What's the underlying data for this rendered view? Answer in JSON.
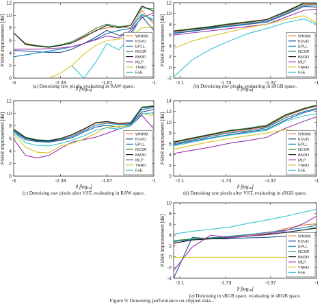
{
  "figure": {
    "caption": "Figure 9: Denoising performance on clipped data..."
  },
  "legend_labels": [
    "WNNM",
    "KSVD",
    "EPLL",
    "NCSR",
    "BM3D",
    "MLP",
    "TNRD",
    "FoE"
  ],
  "colors": {
    "WNNM": "#e07b3a",
    "KSVD": "#1f4e8c",
    "EPLL": "#0a7ec2",
    "NCSR": "#2e8b3e",
    "BM3D": "#222222",
    "MLP": "#9b2fae",
    "TNRD": "#d2c41e",
    "FoE": "#2ec4d2"
  },
  "chart_data": [
    {
      "id": "a",
      "type": "line",
      "caption": "(a) Denoising raw pixels, evaluating in RAW space.",
      "xlabel": "ϑ [log₁₀]",
      "ylabel": "PSNR improvement [dB]",
      "xlim": [
        -3,
        -1
      ],
      "ylim": [
        0,
        12
      ],
      "xticks": [
        -3,
        -2.33,
        -1.67,
        -1
      ],
      "xtick_labels": [
        "-3",
        "-2.33",
        "-1.67",
        "-1"
      ],
      "yticks": [
        0,
        2,
        4,
        6,
        8,
        10,
        12
      ],
      "grid": false,
      "legend": "right-inside",
      "x": [
        -3,
        -2.83,
        -2.67,
        -2.5,
        -2.33,
        -2.17,
        -2.0,
        -1.83,
        -1.67,
        -1.5,
        -1.33,
        -1.17,
        -1.0
      ],
      "series": [
        {
          "name": "WNNM",
          "values": [
            7.2,
            5.3,
            5.1,
            5.0,
            5.2,
            5.6,
            6.4,
            7.6,
            8.0,
            8.2,
            8.0,
            10.8,
            8.6
          ]
        },
        {
          "name": "KSVD",
          "values": [
            4.4,
            4.3,
            4.2,
            4.1,
            4.1,
            4.6,
            5.5,
            6.5,
            7.6,
            6.8,
            7.2,
            9.8,
            7.6
          ]
        },
        {
          "name": "EPLL",
          "values": [
            3.4,
            3.7,
            4.0,
            4.3,
            4.6,
            5.0,
            5.5,
            6.2,
            7.1,
            7.6,
            7.9,
            10.2,
            9.1
          ]
        },
        {
          "name": "NCSR",
          "values": [
            7.2,
            5.5,
            5.2,
            5.0,
            5.3,
            5.8,
            6.8,
            7.9,
            8.6,
            8.2,
            8.4,
            11.2,
            11.0
          ]
        },
        {
          "name": "BM3D",
          "values": [
            7.2,
            5.4,
            5.1,
            4.9,
            5.2,
            5.6,
            6.6,
            7.5,
            8.4,
            8.0,
            8.4,
            11.5,
            10.6
          ]
        },
        {
          "name": "MLP",
          "values": [
            4.6,
            4.6,
            4.6,
            4.7,
            4.8,
            5.0,
            5.5,
            6.1,
            6.7,
            6.4,
            7.6,
            9.6,
            10.4
          ]
        },
        {
          "name": "TNRD",
          "values": [
            null,
            null,
            null,
            0.0,
            0.8,
            2.0,
            3.8,
            5.2,
            6.0,
            6.2,
            6.6,
            8.0,
            8.2
          ]
        },
        {
          "name": "FoE",
          "values": [
            null,
            null,
            null,
            null,
            null,
            2.0,
            0.0,
            2.5,
            5.5,
            4.5,
            6.6,
            10.0,
            9.4
          ]
        }
      ]
    },
    {
      "id": "b",
      "type": "line",
      "caption": "(b) Denoising raw pixels, evaluating in sRGB space.",
      "xlabel": "ϑ [log₁₀]",
      "ylabel": "PSNR improvement [dB]",
      "xlim": [
        -2.15,
        -1.0
      ],
      "ylim": [
        -2,
        12
      ],
      "xticks": [
        -2.1,
        -1.73,
        -1.37,
        -1.0
      ],
      "xtick_labels": [
        "-2.1",
        "-1.73",
        "-1.37",
        "-1"
      ],
      "yticks": [
        -2,
        0,
        2,
        4,
        6,
        8,
        10,
        12
      ],
      "grid": false,
      "legend": "right-inside",
      "x": [
        -2.15,
        -2.0,
        -1.85,
        -1.7,
        -1.55,
        -1.4,
        -1.25,
        -1.1,
        -1.0
      ],
      "series": [
        {
          "name": "WNNM",
          "values": [
            6.6,
            7.0,
            7.4,
            7.9,
            8.3,
            8.8,
            10.2,
            11.7,
            11.7
          ]
        },
        {
          "name": "KSVD",
          "values": [
            6.3,
            6.7,
            7.2,
            7.6,
            8.0,
            8.4,
            9.8,
            11.3,
            11.2
          ]
        },
        {
          "name": "EPLL",
          "values": [
            6.4,
            6.8,
            7.3,
            7.7,
            8.1,
            8.6,
            10.0,
            11.5,
            11.6
          ]
        },
        {
          "name": "NCSR",
          "values": [
            6.8,
            7.2,
            7.6,
            8.1,
            8.5,
            8.9,
            10.4,
            12.0,
            12.0
          ]
        },
        {
          "name": "BM3D",
          "values": [
            6.7,
            7.1,
            7.5,
            8.0,
            8.4,
            8.9,
            10.3,
            11.9,
            11.9
          ]
        },
        {
          "name": "MLP",
          "values": [
            6.0,
            6.4,
            6.8,
            7.2,
            7.6,
            8.0,
            9.3,
            10.6,
            10.8
          ]
        },
        {
          "name": "TNRD",
          "values": [
            3.5,
            4.9,
            5.8,
            6.6,
            7.4,
            8.0,
            8.9,
            9.6,
            8.3
          ]
        },
        {
          "name": "FoE",
          "values": [
            -1.8,
            1.4,
            3.4,
            4.9,
            6.3,
            7.2,
            8.3,
            9.0,
            8.0
          ]
        }
      ]
    },
    {
      "id": "c",
      "type": "line",
      "caption": "(c) Denoising raw pixels after VST, evaluating in RAW space.",
      "xlabel": "ϑ [log₁₀]",
      "ylabel": "PSNR improvement [dB]",
      "xlim": [
        -3,
        -1
      ],
      "ylim": [
        0,
        12
      ],
      "xticks": [
        -3,
        -2.33,
        -1.67,
        -1
      ],
      "xtick_labels": [
        "-3",
        "-2.33",
        "-1.67",
        "-1"
      ],
      "yticks": [
        0,
        2,
        4,
        6,
        8,
        10,
        12
      ],
      "grid": false,
      "legend": "right-inside",
      "x": [
        -3,
        -2.83,
        -2.67,
        -2.5,
        -2.33,
        -2.17,
        -2.0,
        -1.83,
        -1.67,
        -1.5,
        -1.33,
        -1.17,
        -1.0
      ],
      "series": [
        {
          "name": "WNNM",
          "values": [
            7.4,
            6.1,
            5.7,
            5.6,
            5.9,
            6.5,
            7.4,
            8.4,
            8.6,
            8.3,
            8.4,
            10.9,
            11.1
          ]
        },
        {
          "name": "KSVD",
          "values": [
            7.0,
            5.8,
            5.5,
            5.4,
            5.7,
            6.1,
            7.0,
            7.8,
            8.1,
            7.8,
            8.2,
            10.2,
            10.6
          ]
        },
        {
          "name": "EPLL",
          "values": [
            7.2,
            6.0,
            5.6,
            5.5,
            5.8,
            6.3,
            7.2,
            8.1,
            8.4,
            8.2,
            8.3,
            10.6,
            10.9
          ]
        },
        {
          "name": "NCSR",
          "values": [
            7.5,
            6.2,
            5.8,
            5.7,
            6.0,
            6.6,
            7.5,
            8.5,
            8.7,
            8.4,
            8.5,
            11.0,
            11.2
          ]
        },
        {
          "name": "BM3D",
          "values": [
            7.4,
            6.1,
            5.7,
            5.6,
            6.0,
            6.6,
            7.5,
            8.5,
            8.7,
            8.4,
            8.5,
            10.9,
            11.1
          ]
        },
        {
          "name": "MLP",
          "values": [
            5.9,
            3.3,
            2.9,
            3.3,
            4.4,
            5.4,
            5.8,
            6.2,
            6.8,
            7.5,
            8.0,
            9.7,
            7.5
          ]
        },
        {
          "name": "TNRD",
          "values": [
            6.7,
            4.6,
            3.8,
            3.7,
            4.8,
            5.2,
            5.9,
            6.8,
            7.8,
            7.9,
            8.0,
            10.0,
            9.6
          ]
        },
        {
          "name": "FoE",
          "values": [
            7.0,
            5.3,
            4.9,
            4.8,
            5.2,
            5.7,
            6.4,
            7.3,
            7.7,
            7.5,
            8.0,
            9.9,
            10.1
          ]
        }
      ]
    },
    {
      "id": "d",
      "type": "line",
      "caption": "(d) Denoising raw pixels after VST, evaluating in sRGB space.",
      "xlabel": "ϑ [log₁₀]",
      "ylabel": "PSNR improvement [dB]",
      "xlim": [
        -2.15,
        -1.0
      ],
      "ylim": [
        0,
        14
      ],
      "xticks": [
        -2.1,
        -1.73,
        -1.37,
        -1.0
      ],
      "xtick_labels": [
        "-2.1",
        "-1.73",
        "-1.37",
        "-1"
      ],
      "yticks": [
        0,
        2,
        4,
        6,
        8,
        10,
        12,
        14
      ],
      "grid": false,
      "legend": "right-inside",
      "x": [
        -2.15,
        -2.0,
        -1.85,
        -1.7,
        -1.55,
        -1.4,
        -1.25,
        -1.1,
        -1.0
      ],
      "series": [
        {
          "name": "WNNM",
          "values": [
            6.2,
            6.9,
            7.6,
            8.2,
            8.6,
            9.2,
            11.1,
            12.4,
            13.0
          ]
        },
        {
          "name": "KSVD",
          "values": [
            5.8,
            6.5,
            7.1,
            7.7,
            8.2,
            8.7,
            10.4,
            11.8,
            12.4
          ]
        },
        {
          "name": "EPLL",
          "values": [
            6.0,
            6.7,
            7.4,
            8.0,
            8.4,
            9.0,
            10.8,
            12.0,
            12.6
          ]
        },
        {
          "name": "NCSR",
          "values": [
            6.4,
            7.1,
            7.8,
            8.5,
            8.9,
            9.5,
            11.4,
            12.6,
            13.2
          ]
        },
        {
          "name": "BM3D",
          "values": [
            6.3,
            7.0,
            7.7,
            8.4,
            8.8,
            9.3,
            11.3,
            12.5,
            13.1
          ]
        },
        {
          "name": "MLP",
          "values": [
            4.2,
            4.8,
            5.4,
            6.1,
            6.6,
            7.2,
            8.9,
            10.2,
            11.0
          ]
        },
        {
          "name": "TNRD",
          "values": [
            5.0,
            5.7,
            6.4,
            7.0,
            7.5,
            8.0,
            8.6,
            8.3,
            7.7
          ]
        },
        {
          "name": "FoE",
          "values": [
            5.6,
            6.3,
            7.0,
            7.6,
            8.0,
            8.5,
            10.2,
            11.2,
            11.6
          ]
        }
      ]
    },
    {
      "id": "e",
      "type": "line",
      "caption": "(e) Denoising in sRGB space, evaluating in sRGB space.",
      "xlabel": "ϑ [log₁₀]",
      "ylabel": "PSNR improvement [dB]",
      "xlim": [
        -2.15,
        -1.0
      ],
      "ylim": [
        -4,
        10
      ],
      "xticks": [
        -2.1,
        -1.73,
        -1.37,
        -1.0
      ],
      "xtick_labels": [
        "-2.1",
        "-1.73",
        "-1.37",
        "-1"
      ],
      "yticks": [
        -4,
        -2,
        0,
        2,
        4,
        6,
        8,
        10
      ],
      "grid": false,
      "legend": "right-inside",
      "x": [
        -2.15,
        -2.0,
        -1.85,
        -1.7,
        -1.55,
        -1.4,
        -1.25,
        -1.1,
        -1.0
      ],
      "series": [
        {
          "name": "WNNM",
          "values": [
            2.4,
            3.3,
            3.5,
            3.7,
            4.0,
            4.3,
            5.2,
            5.9,
            6.1
          ]
        },
        {
          "name": "KSVD",
          "values": [
            -4.0,
            3.6,
            3.3,
            3.3,
            3.5,
            3.6,
            3.8,
            4.2,
            4.5
          ]
        },
        {
          "name": "EPLL",
          "values": [
            2.8,
            3.2,
            3.5,
            3.8,
            4.1,
            4.5,
            4.9,
            5.4,
            5.8
          ]
        },
        {
          "name": "NCSR",
          "values": [
            3.0,
            3.3,
            3.4,
            3.6,
            3.8,
            4.1,
            4.5,
            5.0,
            5.4
          ]
        },
        {
          "name": "BM3D",
          "values": [
            2.5,
            3.1,
            3.3,
            3.5,
            3.8,
            4.1,
            4.5,
            5.0,
            5.3
          ]
        },
        {
          "name": "MLP",
          "values": [
            -2.6,
            1.8,
            4.0,
            3.5,
            3.8,
            4.2,
            4.8,
            6.2,
            7.5
          ]
        },
        {
          "name": "TNRD",
          "values": [
            -0.1,
            -0.1,
            -0.1,
            -0.1,
            -0.1,
            -0.1,
            -0.1,
            -0.1,
            -0.1
          ]
        },
        {
          "name": "FoE",
          "values": [
            4.2,
            4.7,
            5.1,
            5.5,
            6.2,
            6.8,
            7.5,
            8.3,
            8.8
          ]
        }
      ]
    }
  ]
}
